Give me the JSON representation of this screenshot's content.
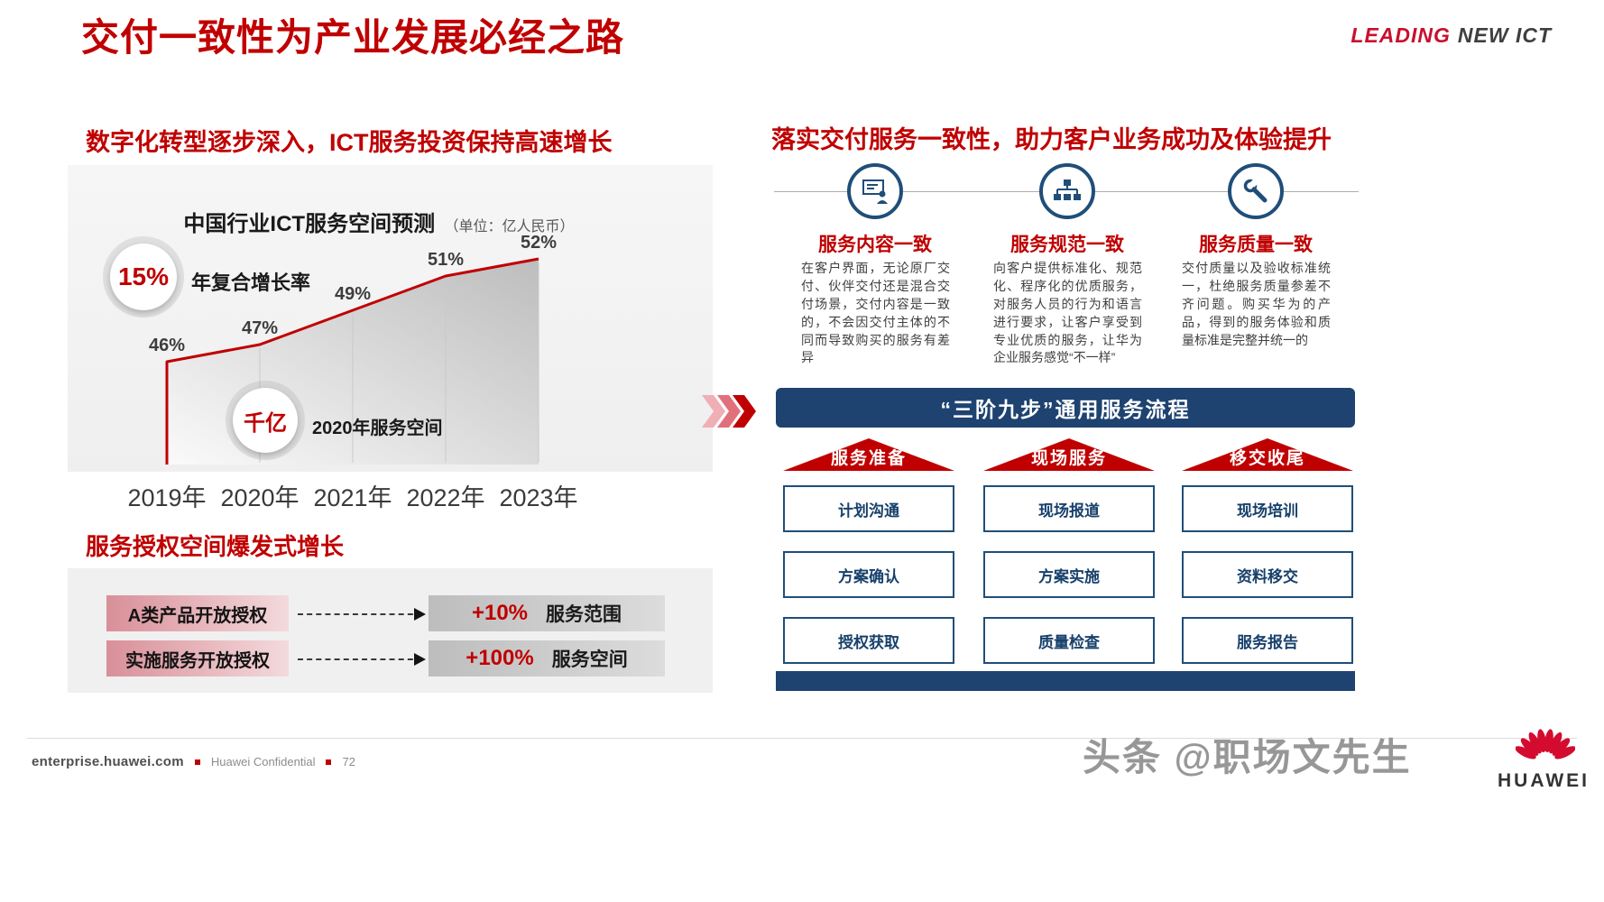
{
  "header": {
    "title": "交付一致性为产业发展必经之路",
    "logo_leading": "LEADING",
    "logo_new_ict": "NEW ICT"
  },
  "left": {
    "section1_heading": "数字化转型逐步深入，ICT服务投资保持高速增长",
    "growth_badge": {
      "value": "15%",
      "label": "年复合增长率"
    },
    "space_badge": {
      "value": "千亿",
      "label": "2020年服务空间"
    },
    "section2_heading": "服务授权空间爆发式增长",
    "auth_rows": [
      {
        "label": "A类产品开放授权",
        "pct": "+10%",
        "desc": "服务范围"
      },
      {
        "label": "实施服务开放授权",
        "pct": "+100%",
        "desc": "服务空间"
      }
    ]
  },
  "chart_data": {
    "type": "area",
    "title": "中国行业ICT服务空间预测",
    "unit_label": "（单位：亿人民币）",
    "categories": [
      "2019年",
      "2020年",
      "2021年",
      "2022年",
      "2023年"
    ],
    "values": [
      46,
      47,
      49,
      51,
      52
    ],
    "value_suffix": "%",
    "annotations": [
      "年复合增长率 15%",
      "2020年服务空间 千亿"
    ],
    "line_color": "#c00000",
    "fill": "silver-gradient",
    "legend": "none",
    "grid": "off"
  },
  "right": {
    "heading": "落实交付服务一致性，助力客户业务成功及体验提升",
    "pillars": [
      {
        "title": "服务内容一致",
        "icon": "presentation-person-icon",
        "text": "在客户界面，无论原厂交付、伙伴交付还是混合交付场景，交付内容是一致的，不会因交付主体的不同而导致购买的服务有差异"
      },
      {
        "title": "服务规范一致",
        "icon": "org-chart-icon",
        "text": "向客户提供标准化、规范化、程序化的优质服务，对服务人员的行为和语言进行要求，让客户享受到专业优质的服务，让华为企业服务感觉“不一样”"
      },
      {
        "title": "服务质量一致",
        "icon": "wrench-icon",
        "text": "交付质量以及验收标准统一，杜绝服务质量参差不齐问题。购买华为的产品，得到的服务体验和质量标准是完整并统一的"
      }
    ],
    "process_banner": "“三阶九步”通用服务流程",
    "phases": [
      {
        "title": "服务准备",
        "steps": [
          "计划沟通",
          "方案确认",
          "授权获取"
        ]
      },
      {
        "title": "现场服务",
        "steps": [
          "现场报道",
          "方案实施",
          "质量检查"
        ]
      },
      {
        "title": "移交收尾",
        "steps": [
          "现场培训",
          "资料移交",
          "服务报告"
        ]
      }
    ]
  },
  "footer": {
    "site": "enterprise.huawei.com",
    "confidential": "Huawei Confidential",
    "page": "72",
    "watermark": "头条 @职场文先生",
    "brand": "HUAWEI"
  },
  "colors": {
    "red": "#c00000",
    "navy": "#1e4370",
    "box_border": "#1f4e79"
  }
}
